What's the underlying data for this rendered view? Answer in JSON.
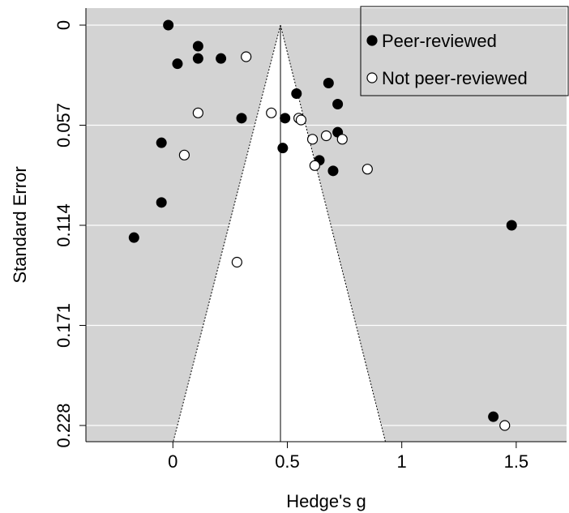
{
  "chart_data": {
    "type": "scatter",
    "title": "",
    "xlabel": "Hedge's g",
    "ylabel": "Standard Error",
    "xlim": [
      -0.38,
      1.72
    ],
    "ylim": [
      0,
      0.238
    ],
    "y_reversed": true,
    "x_ticks": [
      0,
      0.5,
      1,
      1.5
    ],
    "x_tick_labels": [
      "0",
      "0.5",
      "1",
      "1.5"
    ],
    "y_ticks": [
      0,
      0.057,
      0.114,
      0.171,
      0.228
    ],
    "y_tick_labels": [
      "0",
      "0.057",
      "0.114",
      "0.171",
      "0.228"
    ],
    "grid": true,
    "grid_axis": "y",
    "background_color": "#d3d3d3",
    "funnel": {
      "center": 0.47,
      "left_base": 0.0,
      "right_base": 0.93,
      "base_se": 0.238,
      "fill_color": "#ffffff",
      "border_style": "dotted"
    },
    "reference_line_x": 0.47,
    "legend": {
      "position": "top-right",
      "entries": [
        {
          "label": "Peer-reviewed",
          "marker": "filled-circle"
        },
        {
          "label": "Not peer-reviewed",
          "marker": "open-circle"
        }
      ]
    },
    "series": [
      {
        "name": "Peer-reviewed",
        "marker": "filled",
        "color": "#000000",
        "points": [
          {
            "x": -0.02,
            "y": 0.0
          },
          {
            "x": 0.11,
            "y": 0.012
          },
          {
            "x": 0.11,
            "y": 0.019
          },
          {
            "x": 0.02,
            "y": 0.022
          },
          {
            "x": 0.21,
            "y": 0.019
          },
          {
            "x": 0.68,
            "y": 0.033
          },
          {
            "x": 0.54,
            "y": 0.039
          },
          {
            "x": 0.72,
            "y": 0.045
          },
          {
            "x": 0.3,
            "y": 0.053
          },
          {
            "x": 0.49,
            "y": 0.053
          },
          {
            "x": 0.72,
            "y": 0.061
          },
          {
            "x": -0.05,
            "y": 0.067
          },
          {
            "x": 0.48,
            "y": 0.07
          },
          {
            "x": 0.64,
            "y": 0.077
          },
          {
            "x": 0.7,
            "y": 0.083
          },
          {
            "x": -0.05,
            "y": 0.101
          },
          {
            "x": 1.48,
            "y": 0.114
          },
          {
            "x": -0.17,
            "y": 0.121
          },
          {
            "x": 1.4,
            "y": 0.223
          }
        ]
      },
      {
        "name": "Not peer-reviewed",
        "marker": "open",
        "color": "#000000",
        "points": [
          {
            "x": 0.32,
            "y": 0.018
          },
          {
            "x": 0.11,
            "y": 0.05
          },
          {
            "x": 0.43,
            "y": 0.05
          },
          {
            "x": 0.55,
            "y": 0.053
          },
          {
            "x": 0.56,
            "y": 0.054
          },
          {
            "x": 0.67,
            "y": 0.063
          },
          {
            "x": 0.61,
            "y": 0.065
          },
          {
            "x": 0.74,
            "y": 0.065
          },
          {
            "x": 0.05,
            "y": 0.074
          },
          {
            "x": 0.62,
            "y": 0.08
          },
          {
            "x": 0.85,
            "y": 0.082
          },
          {
            "x": 0.28,
            "y": 0.135
          },
          {
            "x": 1.45,
            "y": 0.228
          }
        ]
      }
    ]
  }
}
